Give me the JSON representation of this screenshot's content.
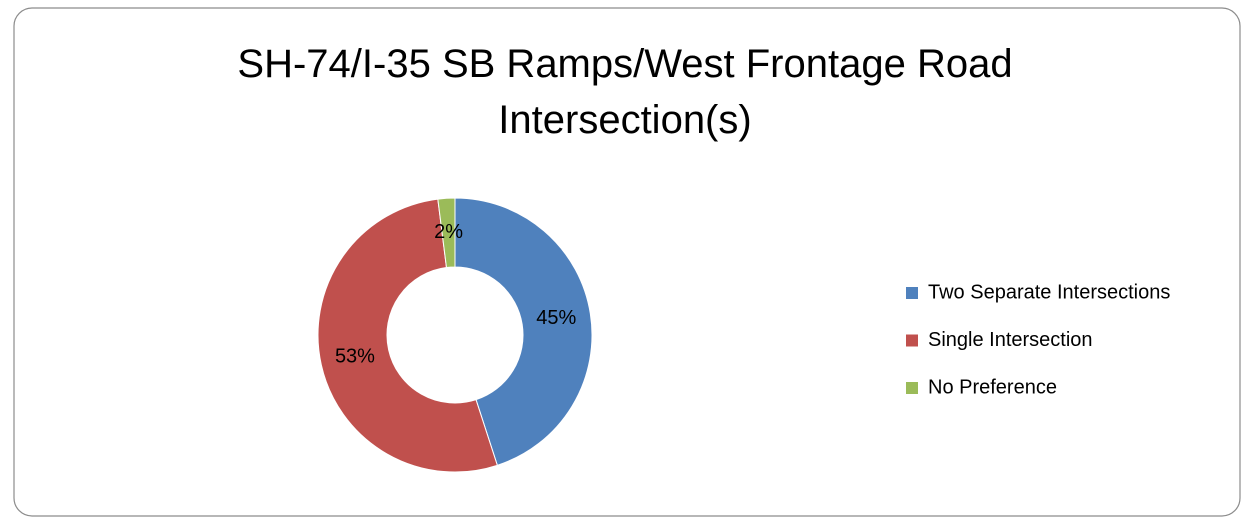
{
  "chart_data": {
    "type": "donut",
    "title": "SH-74/I-35 SB Ramps/West Frontage Road Intersection(s)",
    "categories": [
      "Two Separate Intersections",
      "Single Intersection",
      "No Preference"
    ],
    "values": [
      45,
      53,
      2
    ],
    "value_labels": [
      "45%",
      "53%",
      "2%"
    ],
    "colors": [
      "#4f81bd",
      "#c0504d",
      "#9bbb59"
    ],
    "legend": "right"
  }
}
